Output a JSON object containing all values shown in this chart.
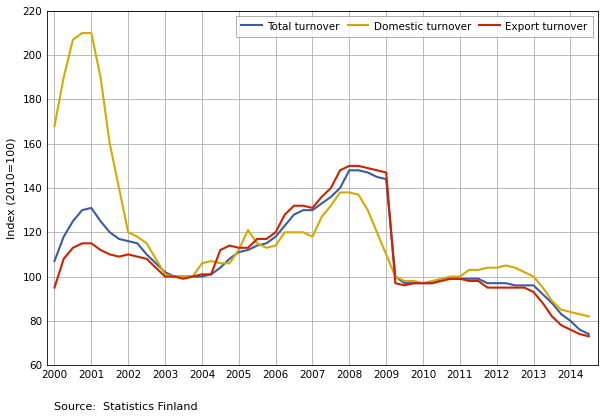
{
  "ylabel": "Index (2010=100)",
  "source_text": "Source:  Statistics Finland",
  "ylim": [
    60,
    220
  ],
  "yticks": [
    60,
    80,
    100,
    120,
    140,
    160,
    180,
    200,
    220
  ],
  "xlim": [
    1999.8,
    2014.75
  ],
  "xticks": [
    2000,
    2001,
    2002,
    2003,
    2004,
    2005,
    2006,
    2007,
    2008,
    2009,
    2010,
    2011,
    2012,
    2013,
    2014
  ],
  "line_width": 1.5,
  "colors": {
    "total": "#3C5AA6",
    "domestic": "#D4AA00",
    "export": "#CC2200"
  },
  "total_turnover_x": [
    2000.0,
    2000.25,
    2000.5,
    2000.75,
    2001.0,
    2001.25,
    2001.5,
    2001.75,
    2002.0,
    2002.25,
    2002.5,
    2002.75,
    2003.0,
    2003.25,
    2003.5,
    2003.75,
    2004.0,
    2004.25,
    2004.5,
    2004.75,
    2005.0,
    2005.25,
    2005.5,
    2005.75,
    2006.0,
    2006.25,
    2006.5,
    2006.75,
    2007.0,
    2007.25,
    2007.5,
    2007.75,
    2008.0,
    2008.25,
    2008.5,
    2008.75,
    2009.0,
    2009.25,
    2009.5,
    2009.75,
    2010.0,
    2010.25,
    2010.5,
    2010.75,
    2011.0,
    2011.25,
    2011.5,
    2011.75,
    2012.0,
    2012.25,
    2012.5,
    2012.75,
    2013.0,
    2013.25,
    2013.5,
    2013.75,
    2014.0,
    2014.25,
    2014.5
  ],
  "total_turnover_y": [
    107,
    118,
    125,
    130,
    131,
    125,
    120,
    117,
    116,
    115,
    110,
    106,
    102,
    100,
    100,
    100,
    100,
    101,
    104,
    108,
    111,
    112,
    114,
    115,
    118,
    123,
    128,
    130,
    130,
    133,
    136,
    140,
    148,
    148,
    147,
    145,
    144,
    100,
    97,
    97,
    97,
    97,
    99,
    99,
    99,
    99,
    99,
    97,
    97,
    97,
    96,
    96,
    96,
    92,
    88,
    83,
    80,
    76,
    74
  ],
  "domestic_turnover_x": [
    2000.0,
    2000.25,
    2000.5,
    2000.75,
    2001.0,
    2001.25,
    2001.5,
    2001.75,
    2002.0,
    2002.25,
    2002.5,
    2002.75,
    2003.0,
    2003.25,
    2003.5,
    2003.75,
    2004.0,
    2004.25,
    2004.5,
    2004.75,
    2005.0,
    2005.25,
    2005.5,
    2005.75,
    2006.0,
    2006.25,
    2006.5,
    2006.75,
    2007.0,
    2007.25,
    2007.5,
    2007.75,
    2008.0,
    2008.25,
    2008.5,
    2008.75,
    2009.0,
    2009.25,
    2009.5,
    2009.75,
    2010.0,
    2010.25,
    2010.5,
    2010.75,
    2011.0,
    2011.25,
    2011.5,
    2011.75,
    2012.0,
    2012.25,
    2012.5,
    2012.75,
    2013.0,
    2013.25,
    2013.5,
    2013.75,
    2014.0,
    2014.25,
    2014.5
  ],
  "domestic_turnover_y": [
    168,
    190,
    207,
    210,
    210,
    190,
    160,
    140,
    120,
    118,
    115,
    108,
    101,
    100,
    100,
    100,
    106,
    107,
    106,
    106,
    112,
    121,
    115,
    113,
    114,
    120,
    120,
    120,
    118,
    127,
    132,
    138,
    138,
    137,
    130,
    120,
    110,
    100,
    98,
    98,
    97,
    98,
    99,
    100,
    100,
    103,
    103,
    104,
    104,
    105,
    104,
    102,
    100,
    95,
    89,
    85,
    84,
    83,
    82
  ],
  "export_turnover_x": [
    2000.0,
    2000.25,
    2000.5,
    2000.75,
    2001.0,
    2001.25,
    2001.5,
    2001.75,
    2002.0,
    2002.25,
    2002.5,
    2002.75,
    2003.0,
    2003.25,
    2003.5,
    2003.75,
    2004.0,
    2004.25,
    2004.5,
    2004.75,
    2005.0,
    2005.25,
    2005.5,
    2005.75,
    2006.0,
    2006.25,
    2006.5,
    2006.75,
    2007.0,
    2007.25,
    2007.5,
    2007.75,
    2008.0,
    2008.25,
    2008.5,
    2008.75,
    2009.0,
    2009.25,
    2009.5,
    2009.75,
    2010.0,
    2010.25,
    2010.5,
    2010.75,
    2011.0,
    2011.25,
    2011.5,
    2011.75,
    2012.0,
    2012.25,
    2012.5,
    2012.75,
    2013.0,
    2013.25,
    2013.5,
    2013.75,
    2014.0,
    2014.25,
    2014.5
  ],
  "export_turnover_y": [
    95,
    108,
    113,
    115,
    115,
    112,
    110,
    109,
    110,
    109,
    108,
    104,
    100,
    100,
    99,
    100,
    101,
    101,
    112,
    114,
    113,
    113,
    117,
    117,
    120,
    128,
    132,
    132,
    131,
    136,
    140,
    148,
    150,
    150,
    149,
    148,
    147,
    97,
    96,
    97,
    97,
    97,
    98,
    99,
    99,
    98,
    98,
    95,
    95,
    95,
    95,
    95,
    93,
    88,
    82,
    78,
    76,
    74,
    73
  ]
}
